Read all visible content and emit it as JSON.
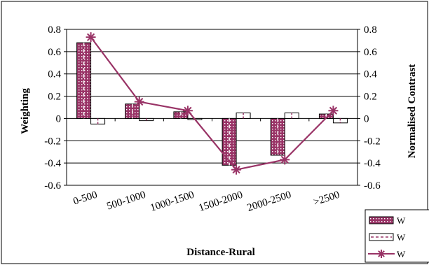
{
  "chart_data": {
    "type": "bar",
    "title": "",
    "xlabel": "Distance-Rural",
    "ylabel": "Weighting",
    "y2label": "Normalised Contrast",
    "ylim": [
      -0.6,
      0.8
    ],
    "y2lim": [
      -0.6,
      0.8
    ],
    "yticks": [
      "0.8",
      "0.6",
      "0.4",
      "0.2",
      "0",
      "-0.2",
      "-0.4",
      "-0.6"
    ],
    "y2ticks": [
      "0.8",
      "0.6",
      "0.4",
      "0.2",
      "0",
      "-0.2",
      "-0.4",
      "-0.6"
    ],
    "categories": [
      "0-500",
      "500-1000",
      "1000-1500",
      "1500-2000",
      "2000-2500",
      ">2500"
    ],
    "series": [
      {
        "name": "W",
        "type": "bar",
        "axis": "left",
        "values": [
          0.68,
          0.13,
          0.06,
          -0.42,
          -0.33,
          0.04
        ],
        "color": "#993366",
        "pattern": "dots"
      },
      {
        "name": "W",
        "type": "bar",
        "axis": "left",
        "values": [
          -0.05,
          -0.02,
          -0.01,
          0.05,
          0.05,
          -0.04
        ],
        "color": "#993366",
        "pattern": "dash"
      },
      {
        "name": "W",
        "type": "line",
        "axis": "right",
        "values": [
          0.73,
          0.15,
          0.07,
          -0.46,
          -0.37,
          0.07
        ],
        "color": "#993366",
        "marker": "asterisk"
      }
    ],
    "grid": true,
    "legend_position": "bottom-right"
  }
}
